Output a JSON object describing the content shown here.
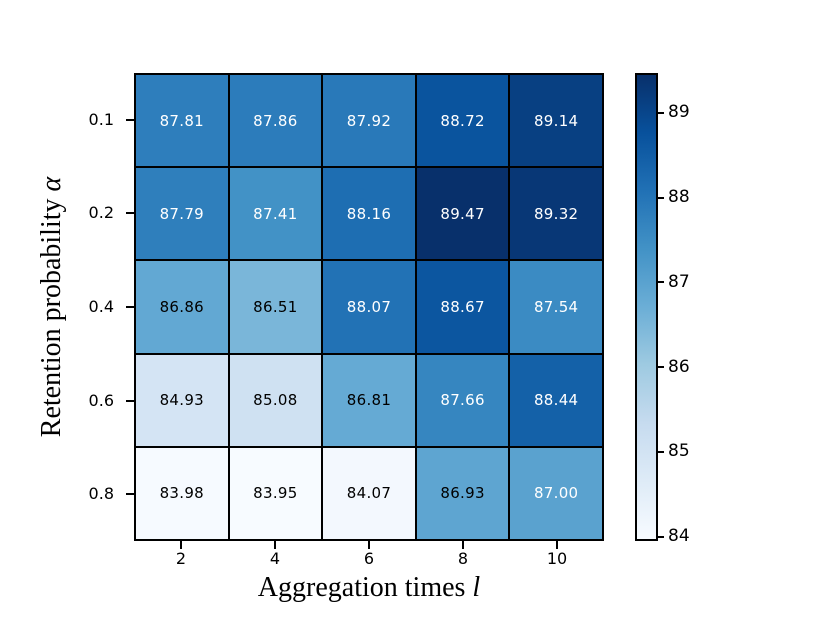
{
  "figure": {
    "background": "#ffffff"
  },
  "chart_data": {
    "type": "heatmap",
    "title": "",
    "xlabel": "Aggregation times",
    "xlabel_symbol": "l",
    "ylabel": "Retention probability",
    "ylabel_symbol": "α",
    "x_categories": [
      "2",
      "4",
      "6",
      "8",
      "10"
    ],
    "y_categories": [
      "0.1",
      "0.2",
      "0.4",
      "0.6",
      "0.8"
    ],
    "values": [
      [
        87.81,
        87.86,
        87.92,
        88.72,
        89.14
      ],
      [
        87.79,
        87.41,
        88.16,
        89.47,
        89.32
      ],
      [
        86.86,
        86.51,
        88.07,
        88.67,
        87.54
      ],
      [
        84.93,
        85.08,
        86.81,
        87.66,
        88.44
      ],
      [
        83.98,
        83.95,
        84.07,
        86.93,
        87.0
      ]
    ],
    "vmin": 83.95,
    "vmax": 89.47,
    "colormap": {
      "name": "Blues",
      "stops": [
        "#f7fbff",
        "#deebf7",
        "#c6dbef",
        "#9ecae1",
        "#6baed6",
        "#4292c6",
        "#2171b5",
        "#08519c",
        "#08306b"
      ]
    },
    "cell_text": {
      "light_color": "#ffffff",
      "dark_color": "#000000",
      "white_text_min_value": 87.0,
      "decimals": 2
    },
    "grid_line_color": "#000000",
    "colorbar": {
      "ticks": [
        "84",
        "85",
        "86",
        "87",
        "88",
        "89"
      ]
    },
    "legend_position": "colorbar-right",
    "grid": "off"
  }
}
